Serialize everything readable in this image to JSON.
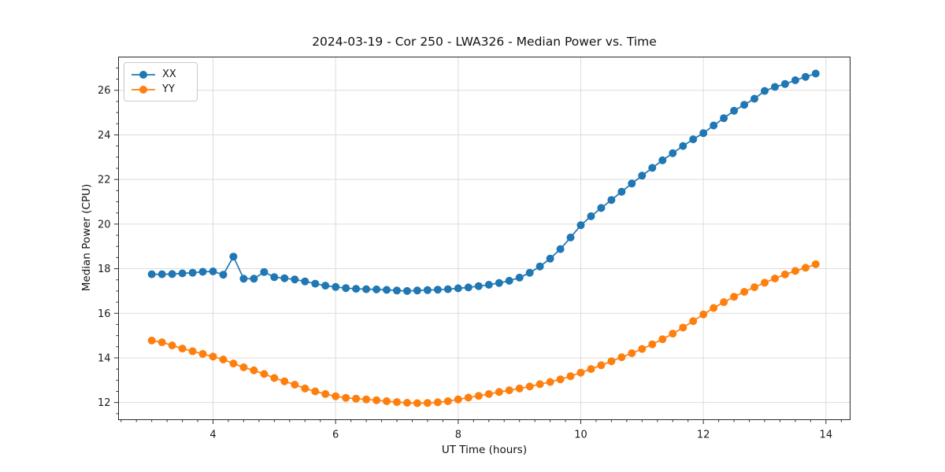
{
  "title": "2024-03-19 - Cor 250 - LWA326 - Median Power vs. Time",
  "colors": {
    "background": "#ffffff",
    "grid": "#dcdcdc",
    "spine": "#2a2a2a",
    "series_xx": "#1f77b4",
    "series_yy": "#ff7f0e"
  },
  "legend": {
    "position": "upper left",
    "items": [
      "XX",
      "YY"
    ]
  },
  "chart_data": {
    "type": "line",
    "title": "2024-03-19 - Cor 250 - LWA326 - Median Power vs. Time",
    "xlabel": "UT Time (hours)",
    "ylabel": "Median Power (CPU)",
    "xlim": [
      2.458,
      14.394
    ],
    "ylim": [
      11.23,
      27.49
    ],
    "x_major_ticks": [
      4,
      6,
      8,
      10,
      12,
      14
    ],
    "x_minor_step": 0.25,
    "y_major_ticks": [
      12,
      14,
      16,
      18,
      20,
      22,
      24,
      26
    ],
    "y_minor_step": 0.5,
    "grid": true,
    "legend_position": "upper left",
    "marker": "circle",
    "x": [
      3.0,
      3.167,
      3.333,
      3.5,
      3.667,
      3.833,
      4.0,
      4.167,
      4.333,
      4.5,
      4.667,
      4.833,
      5.0,
      5.167,
      5.333,
      5.5,
      5.667,
      5.833,
      6.0,
      6.167,
      6.333,
      6.5,
      6.667,
      6.833,
      7.0,
      7.167,
      7.333,
      7.5,
      7.667,
      7.833,
      8.0,
      8.167,
      8.333,
      8.5,
      8.667,
      8.833,
      9.0,
      9.167,
      9.333,
      9.5,
      9.667,
      9.833,
      10.0,
      10.167,
      10.333,
      10.5,
      10.667,
      10.833,
      11.0,
      11.167,
      11.333,
      11.5,
      11.667,
      11.833,
      12.0,
      12.167,
      12.333,
      12.5,
      12.667,
      12.833,
      13.0,
      13.167,
      13.333,
      13.5,
      13.667,
      13.833
    ],
    "series": [
      {
        "name": "XX",
        "color": "#1f77b4",
        "values": [
          17.75,
          17.75,
          17.76,
          17.79,
          17.82,
          17.86,
          17.88,
          17.73,
          18.54,
          17.55,
          17.55,
          17.85,
          17.62,
          17.57,
          17.52,
          17.43,
          17.33,
          17.24,
          17.18,
          17.13,
          17.1,
          17.08,
          17.07,
          17.05,
          17.02,
          17.0,
          17.02,
          17.04,
          17.06,
          17.08,
          17.12,
          17.16,
          17.22,
          17.28,
          17.36,
          17.46,
          17.6,
          17.82,
          18.1,
          18.45,
          18.88,
          19.4,
          19.95,
          20.35,
          20.72,
          21.08,
          21.45,
          21.82,
          22.17,
          22.52,
          22.86,
          23.18,
          23.5,
          23.8,
          24.08,
          24.42,
          24.75,
          25.08,
          25.35,
          25.62,
          25.97,
          26.15,
          26.28,
          26.45,
          26.6,
          26.75
        ]
      },
      {
        "name": "YY",
        "color": "#ff7f0e",
        "values": [
          14.78,
          14.7,
          14.56,
          14.42,
          14.3,
          14.18,
          14.06,
          13.93,
          13.75,
          13.58,
          13.44,
          13.28,
          13.1,
          12.95,
          12.8,
          12.63,
          12.5,
          12.38,
          12.28,
          12.21,
          12.17,
          12.14,
          12.1,
          12.06,
          12.02,
          11.99,
          11.97,
          11.98,
          12.01,
          12.06,
          12.14,
          12.22,
          12.3,
          12.38,
          12.47,
          12.55,
          12.63,
          12.72,
          12.82,
          12.92,
          13.04,
          13.18,
          13.34,
          13.5,
          13.67,
          13.85,
          14.03,
          14.21,
          14.4,
          14.61,
          14.84,
          15.09,
          15.36,
          15.65,
          15.95,
          16.24,
          16.5,
          16.74,
          16.96,
          17.17,
          17.37,
          17.56,
          17.74,
          17.9,
          18.04,
          18.2
        ]
      }
    ]
  }
}
